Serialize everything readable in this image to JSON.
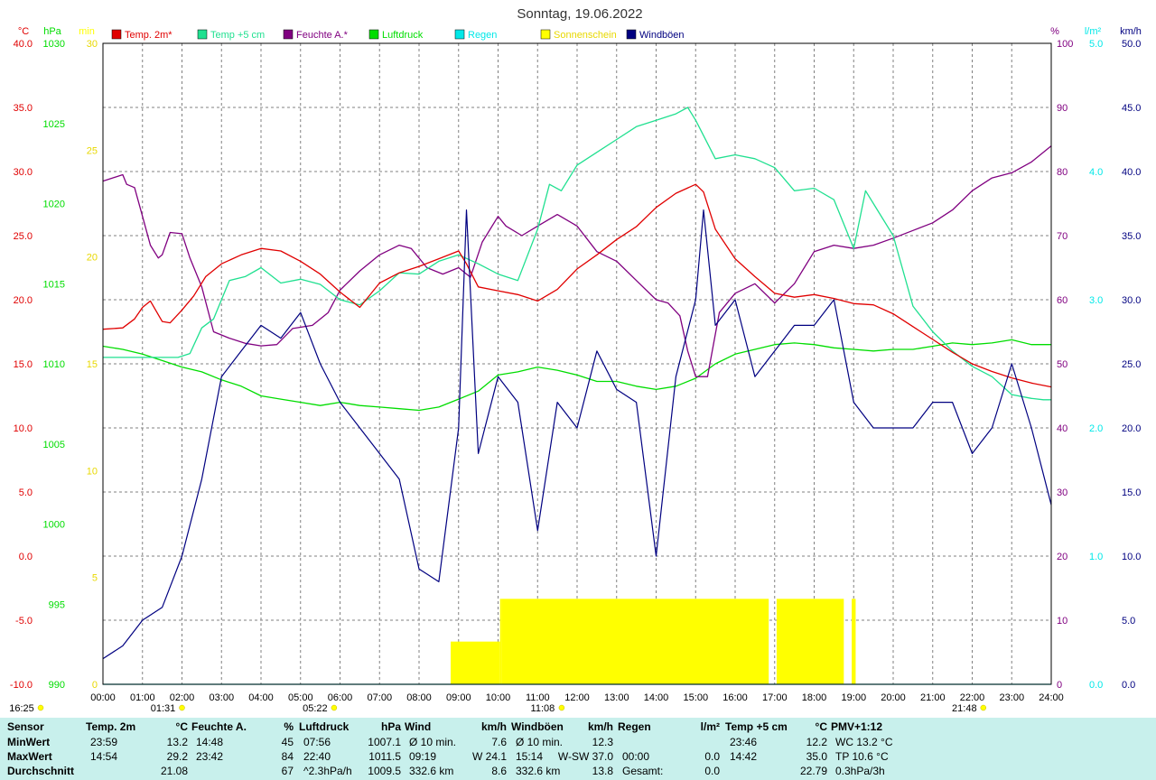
{
  "title": "Sonntag, 19.06.2022",
  "colors": {
    "temp2m": "#e00000",
    "temp5cm": "#20e090",
    "feuchte": "#800080",
    "luftdruck": "#00dd00",
    "regen": "#00e8e8",
    "sonne": "#ffff00",
    "wind": "#000080",
    "grid": "#808080",
    "panel": "#c8f0ec"
  },
  "axes": {
    "temp": {
      "unit": "°C",
      "min": -10,
      "max": 40,
      "ticks": [
        "40.0",
        "35.0",
        "30.0",
        "25.0",
        "20.0",
        "15.0",
        "10.0",
        "5.0",
        "0.0",
        "-5.0",
        "-10.0"
      ]
    },
    "pressure": {
      "unit": "hPa",
      "min": 990,
      "max": 1030,
      "ticks": [
        "1030",
        "1025",
        "1020",
        "1015",
        "1010",
        "1005",
        "1000",
        "995",
        "990"
      ]
    },
    "sun": {
      "unit": "min",
      "min": 0,
      "max": 30,
      "ticks": [
        "30",
        "25",
        "20",
        "15",
        "10",
        "5",
        "0"
      ]
    },
    "humidity": {
      "unit": "%",
      "min": 0,
      "max": 100,
      "ticks": [
        "100",
        "90",
        "80",
        "70",
        "60",
        "50",
        "40",
        "30",
        "20",
        "10",
        "0"
      ]
    },
    "rain": {
      "unit": "l/m²",
      "min": 0,
      "max": 5,
      "ticks": [
        "5.0",
        "4.0",
        "3.0",
        "2.0",
        "1.0",
        "0.0"
      ]
    },
    "wind": {
      "unit": "km/h",
      "min": 0,
      "max": 50,
      "ticks": [
        "50.0",
        "45.0",
        "40.0",
        "35.0",
        "30.0",
        "25.0",
        "20.0",
        "15.0",
        "10.0",
        "5.0",
        "0.0"
      ]
    },
    "x_ticks": [
      "00:00",
      "01:00",
      "02:00",
      "03:00",
      "04:00",
      "05:00",
      "06:00",
      "07:00",
      "08:00",
      "09:00",
      "10:00",
      "11:00",
      "12:00",
      "13:00",
      "14:00",
      "15:00",
      "16:00",
      "17:00",
      "18:00",
      "19:00",
      "20:00",
      "21:00",
      "22:00",
      "23:00",
      "24:00"
    ]
  },
  "legend": [
    {
      "key": "temp2m",
      "label": "Temp. 2m*"
    },
    {
      "key": "temp5cm",
      "label": "Temp +5 cm"
    },
    {
      "key": "feuchte",
      "label": "Feuchte A.*"
    },
    {
      "key": "luftdruck",
      "label": "Luftdruck"
    },
    {
      "key": "regen",
      "label": "Regen"
    },
    {
      "key": "sonne",
      "label": "Sonnenschein"
    },
    {
      "key": "wind",
      "label": "Windböen"
    }
  ],
  "astro": [
    {
      "label": "16:25",
      "hour": -1
    },
    {
      "label": "01:31",
      "hour": 1.52
    },
    {
      "label": "05:22",
      "hour": 5.37
    },
    {
      "label": "11:08",
      "hour": 11.13
    },
    {
      "label": "21:48",
      "hour": 21.8
    }
  ],
  "chart_data": {
    "type": "line",
    "x_unit": "hour",
    "xlim": [
      0,
      24
    ],
    "grid": true,
    "legend_position": "top",
    "series": [
      {
        "key": "temp2m",
        "name": "Temp. 2m*",
        "axis": "temp",
        "x": [
          0,
          0.5,
          0.8,
          1,
          1.2,
          1.5,
          1.7,
          2,
          2.3,
          2.6,
          3,
          3.5,
          4,
          4.5,
          5,
          5.5,
          6,
          6.5,
          7,
          7.5,
          8,
          8.5,
          9,
          9.2,
          9.5,
          10,
          10.5,
          11,
          11.5,
          12,
          12.5,
          13,
          13.5,
          14,
          14.5,
          15,
          15.2,
          15.5,
          16,
          16.5,
          17,
          17.5,
          18,
          18.5,
          19,
          19.5,
          20,
          20.5,
          21,
          21.5,
          22,
          22.5,
          23,
          23.5,
          24
        ],
        "y": [
          17.7,
          17.8,
          18.5,
          19.4,
          19.9,
          18.3,
          18.2,
          19.2,
          20.3,
          21.8,
          22.8,
          23.5,
          24.0,
          23.8,
          23.0,
          22.0,
          20.6,
          19.4,
          21.3,
          22.1,
          22.6,
          23.2,
          23.8,
          22.8,
          21.0,
          20.7,
          20.4,
          19.9,
          20.8,
          22.4,
          23.5,
          24.7,
          25.7,
          27.2,
          28.3,
          29.0,
          28.4,
          25.5,
          23.2,
          21.8,
          20.5,
          20.2,
          20.4,
          20.1,
          19.7,
          19.6,
          18.9,
          17.9,
          16.9,
          15.9,
          15.0,
          14.4,
          13.9,
          13.5,
          13.2
        ]
      },
      {
        "key": "temp5cm",
        "name": "Temp +5 cm",
        "axis": "temp",
        "x": [
          0,
          0.5,
          1,
          1.5,
          1.9,
          2.2,
          2.5,
          2.8,
          3.2,
          3.6,
          4,
          4.5,
          5,
          5.5,
          6,
          6.5,
          7,
          7.5,
          8,
          8.5,
          9,
          9.5,
          10,
          10.5,
          11,
          11.3,
          11.6,
          12,
          12.5,
          13,
          13.5,
          14,
          14.5,
          14.8,
          15,
          15.5,
          16,
          16.5,
          17,
          17.5,
          18,
          18.5,
          19,
          19.3,
          19.6,
          20,
          20.5,
          21,
          21.5,
          22,
          22.5,
          23,
          23.5,
          23.8,
          24
        ],
        "y": [
          15.5,
          15.5,
          15.5,
          15.5,
          15.5,
          15.8,
          17.8,
          18.5,
          21.5,
          21.8,
          22.5,
          21.3,
          21.6,
          21.2,
          20.0,
          19.6,
          20.7,
          22.1,
          22.0,
          23.0,
          23.5,
          22.8,
          22.0,
          21.5,
          25.5,
          29.0,
          28.5,
          30.5,
          31.5,
          32.5,
          33.5,
          34.0,
          34.5,
          35.0,
          34.0,
          31.0,
          31.3,
          31.0,
          30.3,
          28.5,
          28.7,
          27.8,
          24.0,
          28.5,
          27.0,
          25.0,
          19.5,
          17.5,
          16.0,
          14.8,
          14.0,
          12.6,
          12.3,
          12.2,
          12.2
        ]
      },
      {
        "key": "feuchte",
        "name": "Feuchte A.*",
        "axis": "humidity",
        "x": [
          0,
          0.5,
          0.6,
          0.8,
          1,
          1.2,
          1.4,
          1.5,
          1.7,
          2,
          2.2,
          2.5,
          2.8,
          3.2,
          3.6,
          4,
          4.4,
          4.8,
          5.3,
          5.7,
          6,
          6.5,
          7,
          7.5,
          7.8,
          8.2,
          8.6,
          9,
          9.3,
          9.6,
          10,
          10.2,
          10.6,
          11,
          11.5,
          12,
          12.5,
          13,
          13.5,
          14,
          14.3,
          14.6,
          14.8,
          15,
          15.3,
          15.6,
          16,
          16.5,
          17,
          17.5,
          18,
          18.5,
          19,
          19.5,
          20,
          20.5,
          21,
          21.5,
          22,
          22.5,
          23,
          23.5,
          24
        ],
        "y": [
          78.5,
          79.5,
          78,
          77.5,
          73,
          68.5,
          66.5,
          67,
          70.5,
          70.3,
          66.5,
          62,
          55,
          54,
          53.2,
          52.8,
          53,
          55.5,
          56,
          58,
          61.5,
          64.5,
          67,
          68.5,
          68,
          65,
          64,
          65,
          63.5,
          69,
          73,
          71.5,
          70,
          71.5,
          73.3,
          71.5,
          67.5,
          66,
          63,
          60,
          59.5,
          57.5,
          52,
          48,
          48,
          58,
          61,
          62.5,
          59.5,
          62.5,
          67.5,
          68.5,
          68,
          68.5,
          69.6,
          70.8,
          72,
          74,
          77,
          79,
          79.8,
          81.5,
          84
        ]
      },
      {
        "key": "luftdruck",
        "name": "Luftdruck",
        "axis": "pressure",
        "x": [
          0,
          0.5,
          1,
          1.5,
          2,
          2.5,
          3,
          3.5,
          4,
          4.5,
          5,
          5.5,
          6,
          6.5,
          7,
          7.5,
          8,
          8.5,
          9,
          9.5,
          10,
          10.5,
          11,
          11.5,
          12,
          12.5,
          13,
          13.5,
          14,
          14.5,
          15,
          15.5,
          16,
          16.5,
          17,
          17.5,
          18,
          18.5,
          19,
          19.5,
          20,
          20.5,
          21,
          21.5,
          22,
          22.5,
          23,
          23.5,
          24
        ],
        "y": [
          1011.1,
          1010.9,
          1010.6,
          1010.2,
          1009.8,
          1009.5,
          1009.0,
          1008.6,
          1008.0,
          1007.8,
          1007.6,
          1007.4,
          1007.6,
          1007.4,
          1007.3,
          1007.2,
          1007.1,
          1007.3,
          1007.8,
          1008.3,
          1009.3,
          1009.5,
          1009.8,
          1009.6,
          1009.3,
          1008.9,
          1008.9,
          1008.6,
          1008.4,
          1008.6,
          1009.1,
          1010.0,
          1010.6,
          1010.9,
          1011.2,
          1011.3,
          1011.2,
          1011.0,
          1010.9,
          1010.8,
          1010.9,
          1010.9,
          1011.1,
          1011.3,
          1011.2,
          1011.3,
          1011.5,
          1011.2,
          1011.2
        ]
      },
      {
        "key": "regen",
        "name": "Regen",
        "axis": "rain",
        "x": [
          0,
          24
        ],
        "y": [
          0.0,
          0.0
        ]
      },
      {
        "key": "wind",
        "name": "Windböen",
        "axis": "wind",
        "x": [
          0,
          0.5,
          1,
          1.5,
          2,
          2.5,
          3,
          3.5,
          4,
          4.5,
          5,
          5.5,
          6,
          6.5,
          7,
          7.5,
          8,
          8.5,
          9,
          9.2,
          9.5,
          10,
          10.5,
          11,
          11.5,
          12,
          12.5,
          13,
          13.5,
          14,
          14.5,
          15,
          15.2,
          15.5,
          16,
          16.5,
          17,
          17.5,
          18,
          18.5,
          19,
          19.5,
          20,
          20.5,
          21,
          21.5,
          22,
          22.5,
          23,
          23.5,
          24
        ],
        "y": [
          2,
          3,
          5,
          6,
          10,
          16,
          24,
          26,
          28,
          27,
          29,
          25,
          22,
          20,
          18,
          16,
          9,
          8,
          20,
          37,
          18,
          24,
          22,
          12,
          22,
          20,
          26,
          23,
          22,
          10,
          24,
          30,
          37,
          28,
          30,
          24,
          26,
          28,
          28,
          30,
          22,
          20,
          20,
          20,
          22,
          22,
          18,
          20,
          25,
          20,
          14
        ]
      }
    ],
    "sunshine": {
      "name": "Sonnenschein",
      "axis": "sun",
      "unit": "min",
      "bars": [
        {
          "from": 8.8,
          "to": 10.05,
          "value": 2
        },
        {
          "from": 10.05,
          "to": 10.1,
          "value": 4
        },
        {
          "from": 10.1,
          "to": 16.85,
          "value": 4
        },
        {
          "from": 17.05,
          "to": 18.75,
          "value": 4
        },
        {
          "from": 18.95,
          "to": 19.05,
          "value": 4
        }
      ]
    }
  },
  "stats": {
    "row_labels": [
      "Sensor",
      "MinWert",
      "MaxWert",
      "Durchschnitt"
    ],
    "columns": [
      {
        "header": "Temp. 2m",
        "unit": "°C",
        "rows": [
          [
            "23:59",
            "13.2"
          ],
          [
            "14:54",
            "29.2"
          ],
          [
            "",
            "21.08"
          ]
        ]
      },
      {
        "header": "Feuchte A.",
        "unit": "%",
        "rows": [
          [
            "14:48",
            "45"
          ],
          [
            "23:42",
            "84"
          ],
          [
            "",
            "67"
          ]
        ]
      },
      {
        "header": "Luftdruck",
        "unit": "hPa",
        "rows": [
          [
            "07:56",
            "1007.1"
          ],
          [
            "22:40",
            "1011.5"
          ],
          [
            "^2.3hPa/h",
            "1009.5"
          ]
        ]
      },
      {
        "header": "Wind",
        "unit": "km/h",
        "rows": [
          [
            "Ø 10 min.",
            "7.6"
          ],
          [
            "09:19",
            "W 24.1"
          ],
          [
            "332.6 km",
            "8.6"
          ]
        ]
      },
      {
        "header": "Windböen",
        "unit": "km/h",
        "rows": [
          [
            "Ø 10 min.",
            "12.3"
          ],
          [
            "15:14",
            "W-SW 37.0"
          ],
          [
            "332.6 km",
            "13.8"
          ]
        ]
      },
      {
        "header": "Regen",
        "unit": "l/m²",
        "rows": [
          [
            "",
            ""
          ],
          [
            "00:00",
            "0.0"
          ],
          [
            "Gesamt:",
            "0.0"
          ]
        ]
      },
      {
        "header": "Temp +5 cm",
        "unit": "°C",
        "rows": [
          [
            "23:46",
            "12.2"
          ],
          [
            "14:42",
            "35.0"
          ],
          [
            "",
            "22.79"
          ]
        ]
      },
      {
        "header": "PMV+1:12",
        "unit": "",
        "rows": [
          [
            "WC 13.2 °C",
            ""
          ],
          [
            "TP 10.6 °C",
            ""
          ],
          [
            "0.3hPa/3h",
            ""
          ]
        ]
      }
    ]
  }
}
